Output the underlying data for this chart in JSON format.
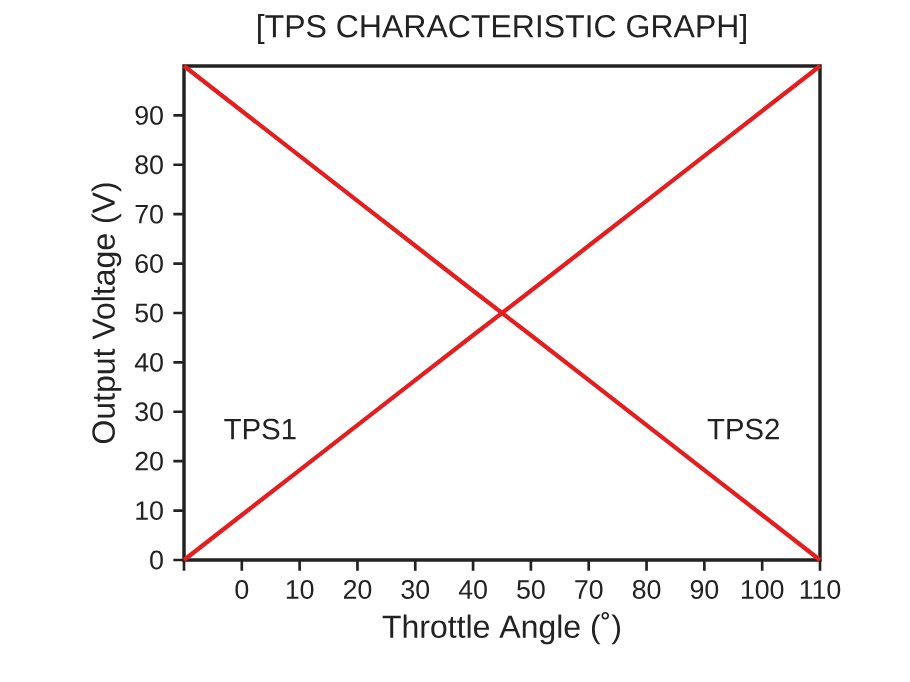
{
  "chart_data": {
    "type": "line",
    "title": "[TPS CHARACTERISTIC GRAPH]",
    "xlabel": "Throttle Angle (˚)",
    "ylabel": "Output Voltage (V)",
    "categories": [
      null,
      "0",
      "10",
      "20",
      "30",
      "40",
      "50",
      "70",
      "80",
      "90",
      "100",
      "110"
    ],
    "series": [
      {
        "color": "#e41e1e",
        "values": [
          0,
          9.1,
          18.2,
          27.3,
          36.4,
          45.5,
          54.5,
          63.6,
          72.7,
          81.8,
          90.9,
          100
        ]
      },
      {
        "color": "#e41e1e",
        "values": [
          100,
          90.9,
          81.8,
          72.7,
          63.6,
          54.5,
          45.5,
          36.4,
          27.3,
          18.2,
          9.1,
          0
        ]
      }
    ],
    "ylim": [
      0,
      100
    ],
    "yticks": [
      0,
      10,
      20,
      30,
      40,
      50,
      60,
      70,
      80,
      90
    ],
    "annotations": [
      "TPS1",
      "TPS2"
    ],
    "grid": false,
    "marker": "none",
    "line_style": "solid"
  }
}
